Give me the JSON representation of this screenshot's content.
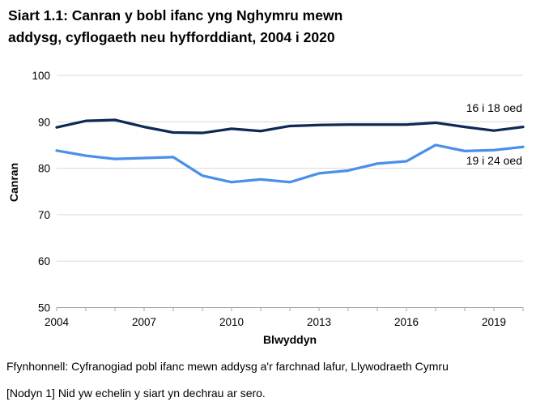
{
  "header": {
    "title_line1": "Siart 1.1: Canran y bobl ifanc yng Nghymru mewn",
    "title_line2": "addysg, cyflogaeth neu hyfforddiant, 2004 i 2020"
  },
  "chart_data": {
    "type": "line",
    "title": "Siart 1.1: Canran y bobl ifanc yng Nghymru mewn addysg, cyflogaeth neu hyfforddiant, 2004 i 2020",
    "xlabel": "Blwyddyn",
    "ylabel": "Canran",
    "x": [
      2004,
      2005,
      2006,
      2007,
      2008,
      2009,
      2010,
      2011,
      2012,
      2013,
      2014,
      2015,
      2016,
      2017,
      2018,
      2019,
      2020
    ],
    "series": [
      {
        "name": "16 i 18 oed",
        "color": "#0d2a54",
        "values": [
          88.8,
          90.2,
          90.4,
          88.9,
          87.7,
          87.6,
          88.5,
          88.0,
          89.1,
          89.3,
          89.4,
          89.4,
          89.4,
          89.8,
          88.9,
          88.1,
          88.9
        ]
      },
      {
        "name": "19 i 24 oed",
        "color": "#4a90e8",
        "values": [
          83.8,
          82.7,
          82.0,
          82.2,
          82.4,
          78.4,
          77.0,
          77.6,
          77.0,
          78.9,
          79.5,
          81.0,
          81.5,
          85.0,
          83.7,
          83.9,
          84.6
        ]
      }
    ],
    "ylim": [
      50,
      100
    ],
    "yticks": [
      50,
      60,
      70,
      80,
      90,
      100
    ],
    "xticks_labeled": [
      2004,
      2007,
      2010,
      2013,
      2016,
      2019
    ],
    "grid": "horizontal",
    "legend_position": "inline-right"
  },
  "footer": {
    "source": "Ffynhonnell: Cyfranogiad pobl ifanc mewn addysg a'r farchnad lafur, Llywodraeth Cymru",
    "note": "[Nodyn 1] Nid yw echelin y siart yn dechrau ar sero."
  },
  "colors": {
    "series_16_18": "#0d2a54",
    "series_19_24": "#4a90e8",
    "gridline": "#d9d9d9",
    "axis": "#a6a6a6",
    "text": "#000000",
    "background": "#ffffff"
  }
}
